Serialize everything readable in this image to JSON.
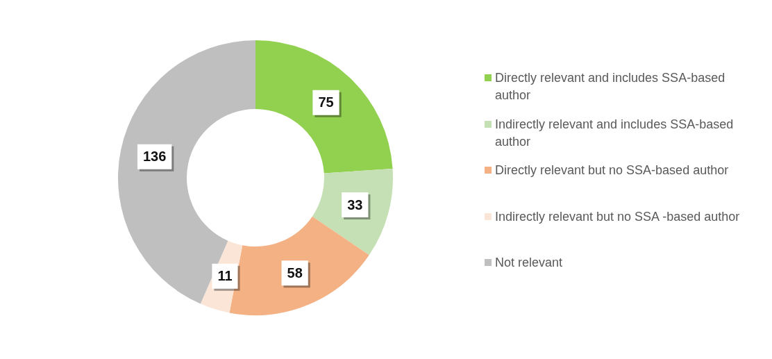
{
  "chart_data": {
    "type": "donut",
    "categories": [
      "Directly relevant and includes SSA-based author",
      "Indirectly relevant and includes SSA-based author",
      "Directly relevant but no SSA-based author",
      "Indirectly relevant but no SSA -based author",
      "Not relevant"
    ],
    "values": [
      75,
      33,
      58,
      11,
      136
    ],
    "colors": [
      "#92d050",
      "#c5e0b4",
      "#f4b183",
      "#fbe5d6",
      "#bfbfbf"
    ],
    "data_labels": true,
    "legend": "right"
  }
}
